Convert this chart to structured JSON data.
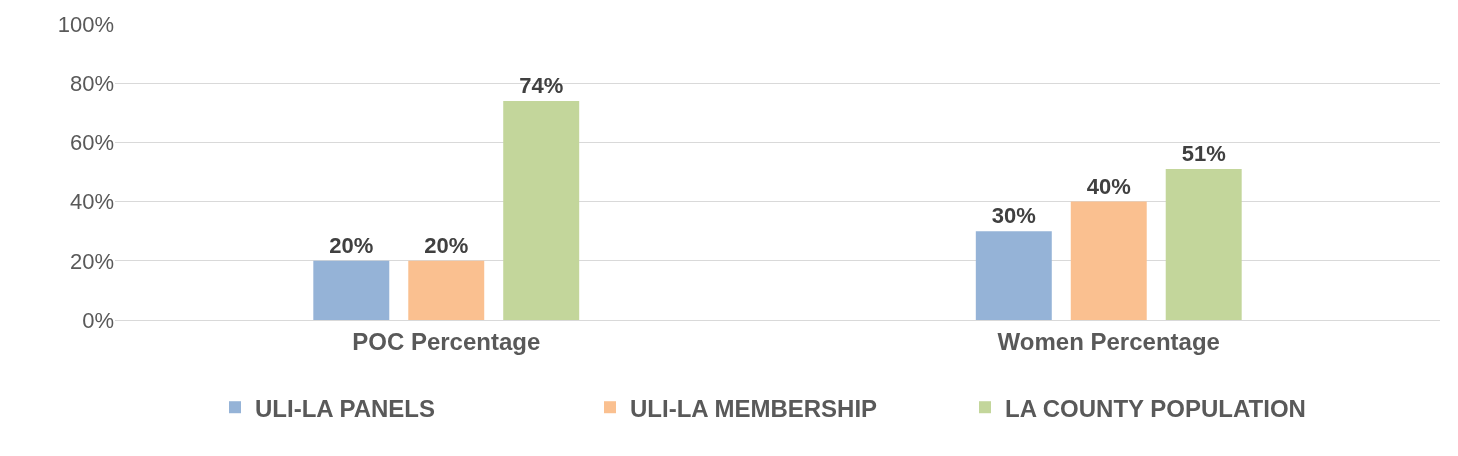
{
  "chart_data": {
    "type": "bar",
    "categories": [
      "POC Percentage",
      "Women Percentage"
    ],
    "series": [
      {
        "name": "ULI-LA PANELS",
        "color": "#95b3d7",
        "values": [
          20,
          30
        ],
        "value_labels": [
          "20%",
          "30%"
        ]
      },
      {
        "name": "ULI-LA MEMBERSHIP",
        "color": "#fac090",
        "values": [
          20,
          40
        ],
        "value_labels": [
          "20%",
          "40%"
        ]
      },
      {
        "name": "LA COUNTY POPULATION",
        "color": "#c3d69b",
        "values": [
          74,
          51
        ],
        "value_labels": [
          "74%",
          "51%"
        ]
      }
    ],
    "ylim": [
      0,
      100
    ],
    "yticks": [
      {
        "value": 0,
        "label": "0%"
      },
      {
        "value": 20,
        "label": "20%"
      },
      {
        "value": 40,
        "label": "40%"
      },
      {
        "value": 60,
        "label": "60%"
      },
      {
        "value": 80,
        "label": "80%"
      },
      {
        "value": 100,
        "label": "100%"
      }
    ],
    "grid": "y",
    "legend": "bottom"
  }
}
